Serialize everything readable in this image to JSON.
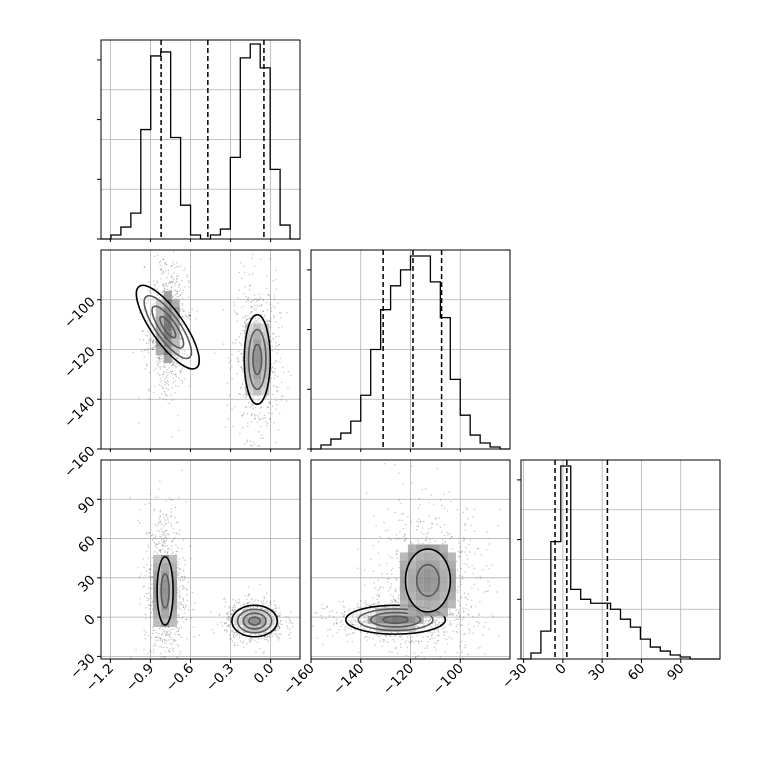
{
  "chart_data": {
    "type": "corner",
    "grid": true,
    "parameters": [
      {
        "id": "p1",
        "range": [
          -1.27,
          0.22
        ],
        "ticks": [
          -1.2,
          -0.9,
          -0.6,
          -0.3,
          0.0
        ],
        "tick_labels": [
          "−1.2",
          "−0.9",
          "−0.6",
          "−0.3",
          "0.0"
        ],
        "quantiles": [
          -0.82,
          -0.47,
          -0.05
        ],
        "histogram": {
          "edges_start": -1.27,
          "bin_width": 0.0745,
          "counts": [
            0.0,
            0.02,
            0.06,
            0.13,
            0.55,
            0.92,
            0.94,
            0.51,
            0.17,
            0.02,
            0.0,
            0.02,
            0.05,
            0.41,
            0.91,
            0.98,
            0.86,
            0.35,
            0.07,
            0.0
          ],
          "peak_fraction_of_axis": 0.97
        }
      },
      {
        "id": "p2",
        "range": [
          -160,
          -80
        ],
        "ticks": [
          -160,
          -140,
          -120,
          -100
        ],
        "tick_labels": [
          "−160",
          "−140",
          "−120",
          "−100"
        ],
        "quantiles": [
          -131,
          -119,
          -107.5
        ],
        "histogram": {
          "edges_start": -160,
          "bin_width": 4,
          "counts": [
            0.0,
            0.02,
            0.05,
            0.08,
            0.14,
            0.27,
            0.5,
            0.7,
            0.82,
            0.9,
            0.97,
            0.97,
            0.84,
            0.66,
            0.35,
            0.17,
            0.07,
            0.03,
            0.01,
            0.0
          ],
          "peak_fraction_of_axis": 0.97
        }
      },
      {
        "id": "p3",
        "range": [
          -32,
          120
        ],
        "ticks": [
          -30,
          0,
          30,
          60,
          90
        ],
        "tick_labels": [
          "−30",
          "0",
          "30",
          "60",
          "90"
        ],
        "quantiles": [
          -6,
          3,
          34
        ],
        "histogram": {
          "edges_start": -32,
          "bin_width": 7.6,
          "counts": [
            0.0,
            0.03,
            0.14,
            0.59,
            0.97,
            0.35,
            0.3,
            0.28,
            0.28,
            0.25,
            0.2,
            0.16,
            0.1,
            0.06,
            0.04,
            0.02,
            0.01,
            0.0,
            0.0,
            0.0
          ],
          "peak_fraction_of_axis": 0.97
        }
      }
    ],
    "blobs": [
      {
        "pair": [
          0,
          1
        ],
        "clusters": [
          {
            "cx": -0.77,
            "cy": -111,
            "sx": 0.06,
            "sy": 10,
            "rot_deg": -35,
            "weight": 0.55,
            "levels": [
              0.045,
              0.032,
              0.021,
              0.011
            ]
          },
          {
            "cx": -0.1,
            "cy": -124,
            "sx": 0.065,
            "sy": 12,
            "rot_deg": 0,
            "weight": 0.45,
            "levels": [
              0.045,
              0.03,
              0.014
            ]
          }
        ]
      },
      {
        "pair": [
          0,
          2
        ],
        "clusters": [
          {
            "cx": -0.79,
            "cy": 20,
            "sx": 0.06,
            "sy": 26,
            "rot_deg": 0,
            "weight": 0.5,
            "levels": [
              0.022,
              0.012
            ]
          },
          {
            "cx": -0.12,
            "cy": -3,
            "sx": 0.085,
            "sy": 6,
            "rot_deg": 0,
            "weight": 0.5,
            "levels": [
              0.075,
              0.056,
              0.037,
              0.018
            ]
          }
        ]
      },
      {
        "pair": [
          1,
          2
        ],
        "clusters": [
          {
            "cx": -126,
            "cy": -2,
            "sx": 10,
            "sy": 5.5,
            "rot_deg": 0,
            "weight": 0.55,
            "levels": [
              0.085,
              0.06,
              0.035,
              0.015
            ]
          },
          {
            "cx": -113,
            "cy": 28,
            "sx": 9,
            "sy": 24,
            "rot_deg": 0,
            "weight": 0.45,
            "levels": [
              0.022,
              0.012
            ]
          }
        ]
      }
    ]
  }
}
